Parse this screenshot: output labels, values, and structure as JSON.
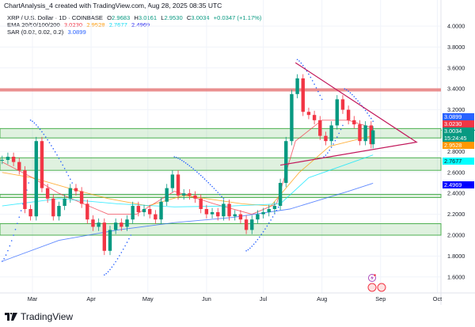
{
  "header": {
    "title": "ChartAnalysis_4 created with TradingView.com, Aug 28, 2025 08:35 UTC",
    "symbol": "XRP / U.S. Dollar · 1D · COINBASE",
    "o_label": "O",
    "open": "2.9683",
    "h_label": "H",
    "high": "3.0161",
    "l_label": "L",
    "low": "2.9530",
    "c_label": "C",
    "close": "3.0034",
    "change": "+0.0347 (+1.17%)",
    "ema_label": "EMA 20/50/100/200",
    "ema_values": [
      "3.0230",
      "2.9528",
      "2.7677",
      "2.4969"
    ],
    "sar_label": "SAR (0.02, 0.02, 0.2)",
    "sar_value": "3.0899"
  },
  "price_tags": {
    "sar": "3.0899",
    "ema20": "3.0230",
    "last": "3.0034",
    "countdown": "15:24:45",
    "ema50": "2.9528",
    "ema100": "2.7677",
    "ema200": "2.4969"
  },
  "colors": {
    "up": "#089981",
    "down": "#f23645",
    "ema20": "#f23645",
    "ema50": "#ff9800",
    "ema100": "#00e5ff",
    "ema200": "#2962ff",
    "sar": "#2962ff",
    "zone": "#4caf50",
    "resistance": "#e57373",
    "triangle": "#c2185b",
    "ema200_tag": "#0000ff"
  },
  "brand": "TradingView",
  "chart_data": {
    "type": "candlestick",
    "title": "XRP / U.S. Dollar · 1D · COINBASE",
    "yticks": [
      "4.0000",
      "3.8000",
      "3.6000",
      "3.4000",
      "3.2000",
      "2.8000",
      "2.6000",
      "2.4000",
      "2.2000",
      "2.0000",
      "1.8000",
      "1.6000"
    ],
    "xticks": [
      {
        "label": "Mar",
        "date": "2025-03-01"
      },
      {
        "label": "Apr",
        "date": "2025-04-01"
      },
      {
        "label": "May",
        "date": "2025-05-01"
      },
      {
        "label": "Jun",
        "date": "2025-06-01"
      },
      {
        "label": "Jul",
        "date": "2025-07-01"
      },
      {
        "label": "Aug",
        "date": "2025-08-01"
      },
      {
        "label": "Sep",
        "date": "2025-09-01"
      },
      {
        "label": "Oct",
        "date": "2025-10-01"
      }
    ],
    "ylim": [
      1.55,
      4.1
    ],
    "grid": true,
    "dates": [
      "2025-02-13",
      "2025-02-16",
      "2025-02-19",
      "2025-02-22",
      "2025-02-25",
      "2025-02-28",
      "2025-03-03",
      "2025-03-06",
      "2025-03-09",
      "2025-03-12",
      "2025-03-15",
      "2025-03-18",
      "2025-03-21",
      "2025-03-24",
      "2025-03-27",
      "2025-03-30",
      "2025-04-02",
      "2025-04-05",
      "2025-04-08",
      "2025-04-11",
      "2025-04-14",
      "2025-04-17",
      "2025-04-20",
      "2025-04-23",
      "2025-04-26",
      "2025-04-29",
      "2025-05-02",
      "2025-05-05",
      "2025-05-08",
      "2025-05-11",
      "2025-05-14",
      "2025-05-17",
      "2025-05-20",
      "2025-05-23",
      "2025-05-26",
      "2025-05-29",
      "2025-06-01",
      "2025-06-04",
      "2025-06-07",
      "2025-06-10",
      "2025-06-13",
      "2025-06-16",
      "2025-06-19",
      "2025-06-22",
      "2025-06-25",
      "2025-06-28",
      "2025-07-01",
      "2025-07-04",
      "2025-07-07",
      "2025-07-10",
      "2025-07-13",
      "2025-07-16",
      "2025-07-19",
      "2025-07-22",
      "2025-07-25",
      "2025-07-28",
      "2025-07-31",
      "2025-08-03",
      "2025-08-06",
      "2025-08-09",
      "2025-08-12",
      "2025-08-15",
      "2025-08-18",
      "2025-08-21",
      "2025-08-24",
      "2025-08-27",
      "2025-08-28"
    ],
    "close": [
      2.72,
      2.75,
      2.7,
      2.62,
      2.25,
      2.18,
      2.9,
      2.45,
      2.35,
      2.18,
      2.28,
      2.35,
      2.45,
      2.42,
      2.3,
      2.15,
      2.08,
      2.12,
      1.85,
      2.05,
      2.12,
      2.08,
      2.15,
      2.28,
      2.22,
      2.25,
      2.2,
      2.15,
      2.32,
      2.45,
      2.58,
      2.38,
      2.4,
      2.38,
      2.35,
      2.25,
      2.2,
      2.22,
      2.18,
      2.3,
      2.18,
      2.2,
      2.15,
      2.05,
      2.15,
      2.2,
      2.22,
      2.25,
      2.28,
      2.5,
      2.9,
      3.35,
      3.5,
      3.18,
      3.15,
      3.1,
      2.95,
      2.9,
      3.05,
      3.3,
      3.2,
      3.1,
      3.06,
      2.9,
      3.05,
      2.87,
      3.0034
    ],
    "ema": [
      {
        "name": "EMA 20",
        "color_key": "ema20",
        "points": [
          [
            "2025-02-13",
            2.7
          ],
          [
            "2025-03-01",
            2.55
          ],
          [
            "2025-03-15",
            2.4
          ],
          [
            "2025-04-10",
            2.2
          ],
          [
            "2025-04-25",
            2.2
          ],
          [
            "2025-05-15",
            2.42
          ],
          [
            "2025-06-05",
            2.3
          ],
          [
            "2025-06-25",
            2.2
          ],
          [
            "2025-07-08",
            2.3
          ],
          [
            "2025-07-18",
            2.9
          ],
          [
            "2025-08-01",
            3.1
          ],
          [
            "2025-08-15",
            3.1
          ],
          [
            "2025-08-28",
            3.023
          ]
        ]
      },
      {
        "name": "EMA 50",
        "color_key": "ema50",
        "points": [
          [
            "2025-02-13",
            2.6
          ],
          [
            "2025-03-01",
            2.55
          ],
          [
            "2025-03-20",
            2.45
          ],
          [
            "2025-04-10",
            2.35
          ],
          [
            "2025-05-01",
            2.28
          ],
          [
            "2025-05-20",
            2.38
          ],
          [
            "2025-06-20",
            2.3
          ],
          [
            "2025-07-05",
            2.28
          ],
          [
            "2025-07-20",
            2.6
          ],
          [
            "2025-08-05",
            2.85
          ],
          [
            "2025-08-28",
            2.9528
          ]
        ]
      },
      {
        "name": "EMA 100",
        "color_key": "ema100",
        "points": [
          [
            "2025-02-13",
            2.28
          ],
          [
            "2025-03-15",
            2.35
          ],
          [
            "2025-04-15",
            2.3
          ],
          [
            "2025-05-15",
            2.27
          ],
          [
            "2025-06-15",
            2.28
          ],
          [
            "2025-07-10",
            2.3
          ],
          [
            "2025-07-25",
            2.55
          ],
          [
            "2025-08-28",
            2.7677
          ]
        ]
      },
      {
        "name": "EMA 200",
        "color_key": "ema200",
        "points": [
          [
            "2025-02-13",
            1.75
          ],
          [
            "2025-03-15",
            1.95
          ],
          [
            "2025-04-15",
            2.05
          ],
          [
            "2025-05-15",
            2.12
          ],
          [
            "2025-06-15",
            2.17
          ],
          [
            "2025-07-15",
            2.25
          ],
          [
            "2025-08-15",
            2.42
          ],
          [
            "2025-08-28",
            2.4969
          ]
        ]
      }
    ],
    "sar_segments": [
      [
        [
          "2025-02-13",
          1.75
        ],
        [
          "2025-02-27",
          2.5
        ]
      ],
      [
        [
          "2025-02-28",
          3.1
        ],
        [
          "2025-03-22",
          2.5
        ]
      ],
      [
        [
          "2025-04-08",
          1.62
        ],
        [
          "2025-04-22",
          2.0
        ]
      ],
      [
        [
          "2025-05-15",
          2.75
        ],
        [
          "2025-06-10",
          2.35
        ]
      ],
      [
        [
          "2025-06-22",
          1.85
        ],
        [
          "2025-07-10",
          2.3
        ]
      ],
      [
        [
          "2025-07-19",
          3.68
        ],
        [
          "2025-08-01",
          3.3
        ]
      ],
      [
        [
          "2025-08-02",
          2.75
        ],
        [
          "2025-08-12",
          3.05
        ]
      ],
      [
        [
          "2025-08-13",
          3.4
        ],
        [
          "2025-08-28",
          3.09
        ]
      ]
    ],
    "zones": [
      [
        2.93,
        3.02
      ],
      [
        2.62,
        2.74
      ],
      [
        2.36,
        2.39
      ],
      [
        2.0,
        2.11
      ]
    ],
    "resistance_line": 3.39,
    "triangle": [
      [
        "2025-07-18",
        3.65
      ],
      [
        "2025-09-20",
        2.89
      ],
      [
        "2025-07-10",
        2.67
      ]
    ]
  }
}
